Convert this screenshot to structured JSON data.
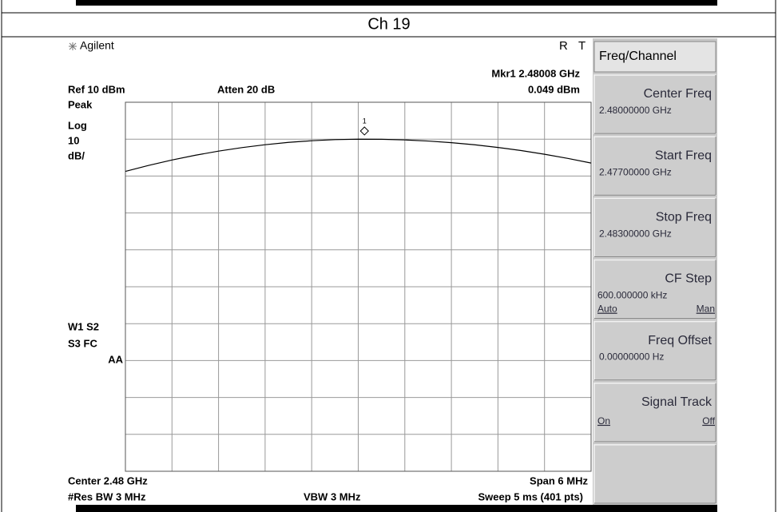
{
  "header": {
    "title": "Ch 19"
  },
  "screen": {
    "brand": "Agilent",
    "status": [
      "R",
      "T"
    ],
    "annotations": {
      "marker": "Mkr1  2.48008 GHz",
      "ref": "Ref 10 dBm",
      "atten": "Atten 20 dB",
      "marker_amplitude": "0.049 dBm",
      "left": [
        "Peak",
        "Log",
        "10",
        "dB/",
        "W1  S2",
        "S3  FC",
        "AA"
      ],
      "center": "Center 2.48 GHz",
      "span": "Span 6 MHz",
      "rbw": "#Res BW 3 MHz",
      "vbw": "VBW 3 MHz",
      "sweep": "Sweep 5 ms (401 pts)"
    }
  },
  "chart_data": {
    "type": "line",
    "x": [
      2.477,
      2.4773,
      2.4776,
      2.4779,
      2.4782,
      2.4785,
      2.4788,
      2.4791,
      2.4794,
      2.4797,
      2.48,
      2.4803,
      2.4806,
      2.4809,
      2.4812,
      2.4815,
      2.4818,
      2.4821,
      2.4824,
      2.4827,
      2.483
    ],
    "series": [
      {
        "color": "#000000",
        "values": [
          -8.73,
          -7.11,
          -5.66,
          -4.37,
          -3.25,
          -2.3,
          -1.51,
          -0.88,
          -0.43,
          -0.13,
          -0.01,
          -0.04,
          -0.21,
          -0.51,
          -0.95,
          -1.53,
          -2.25,
          -3.1,
          -4.09,
          -5.22,
          -6.48
        ]
      }
    ],
    "xlim": [
      2.477,
      2.483
    ],
    "ylim": [
      -90,
      10
    ],
    "marker": {
      "label": "1",
      "x": 2.48008,
      "y": 0.049
    }
  },
  "softkeys": {
    "title": "Freq/Channel",
    "keys": [
      {
        "label": "Center Freq",
        "value": "2.48000000 GHz"
      },
      {
        "label": "Start Freq",
        "value": "2.47700000 GHz"
      },
      {
        "label": "Stop Freq",
        "value": "2.48300000 GHz"
      },
      {
        "label": "CF Step",
        "value": "600.000000 kHz",
        "options": [
          "Auto",
          "Man"
        ]
      },
      {
        "label": "Freq Offset",
        "value": "0.00000000  Hz"
      },
      {
        "label": "Signal Track",
        "options": [
          "On",
          "Off"
        ]
      },
      {}
    ]
  }
}
